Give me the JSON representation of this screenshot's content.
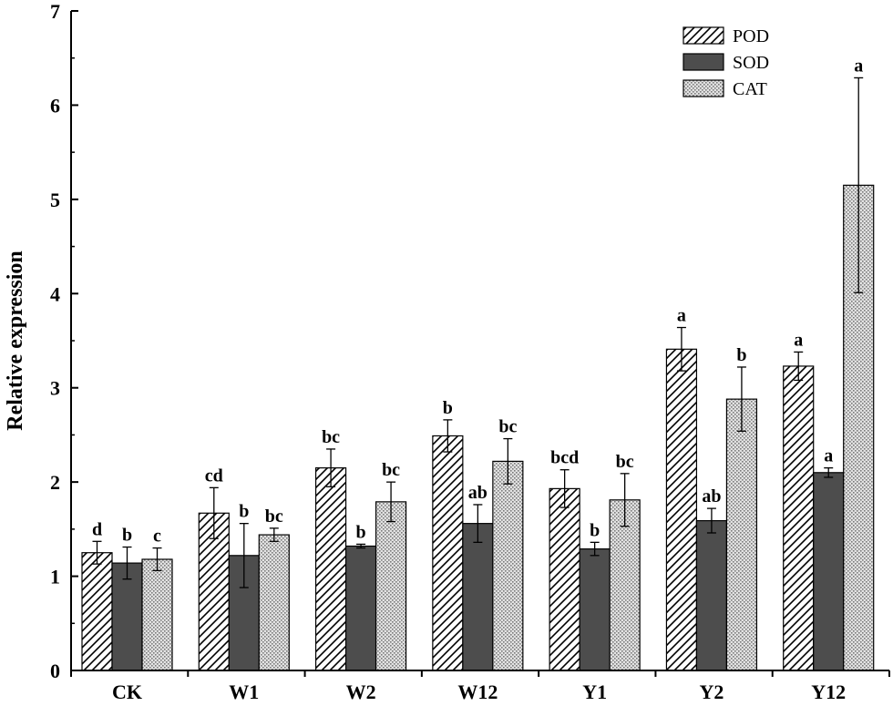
{
  "chart_data": {
    "type": "bar",
    "title": "",
    "xlabel": "",
    "ylabel": "Relative expression",
    "ylim": [
      0,
      7
    ],
    "yticks": [
      0,
      1,
      2,
      3,
      4,
      5,
      6,
      7
    ],
    "categories": [
      "CK",
      "W1",
      "W2",
      "W12",
      "Y1",
      "Y2",
      "Y12"
    ],
    "legend_position": "top-right",
    "series": [
      {
        "name": "POD",
        "pattern": "diagonal-hatch",
        "color": "#000000",
        "values": [
          1.25,
          1.67,
          2.15,
          2.49,
          1.93,
          3.41,
          3.23
        ],
        "errors": [
          0.12,
          0.27,
          0.2,
          0.17,
          0.2,
          0.23,
          0.15
        ],
        "sig": [
          "d",
          "cd",
          "bc",
          "b",
          "bcd",
          "a",
          "a"
        ]
      },
      {
        "name": "SOD",
        "pattern": "solid",
        "color": "#4d4d4d",
        "values": [
          1.14,
          1.22,
          1.32,
          1.56,
          1.29,
          1.59,
          2.1
        ],
        "errors": [
          0.17,
          0.34,
          0.02,
          0.2,
          0.07,
          0.13,
          0.05
        ],
        "sig": [
          "b",
          "b",
          "b",
          "ab",
          "b",
          "ab",
          "a"
        ]
      },
      {
        "name": "CAT",
        "pattern": "dotted",
        "color": "#bdbdbd",
        "values": [
          1.18,
          1.44,
          1.79,
          2.22,
          1.81,
          2.88,
          5.15
        ],
        "errors": [
          0.12,
          0.07,
          0.21,
          0.24,
          0.28,
          0.34,
          1.14
        ],
        "sig": [
          "c",
          "bc",
          "bc",
          "bc",
          "bc",
          "b",
          "a"
        ]
      }
    ]
  }
}
